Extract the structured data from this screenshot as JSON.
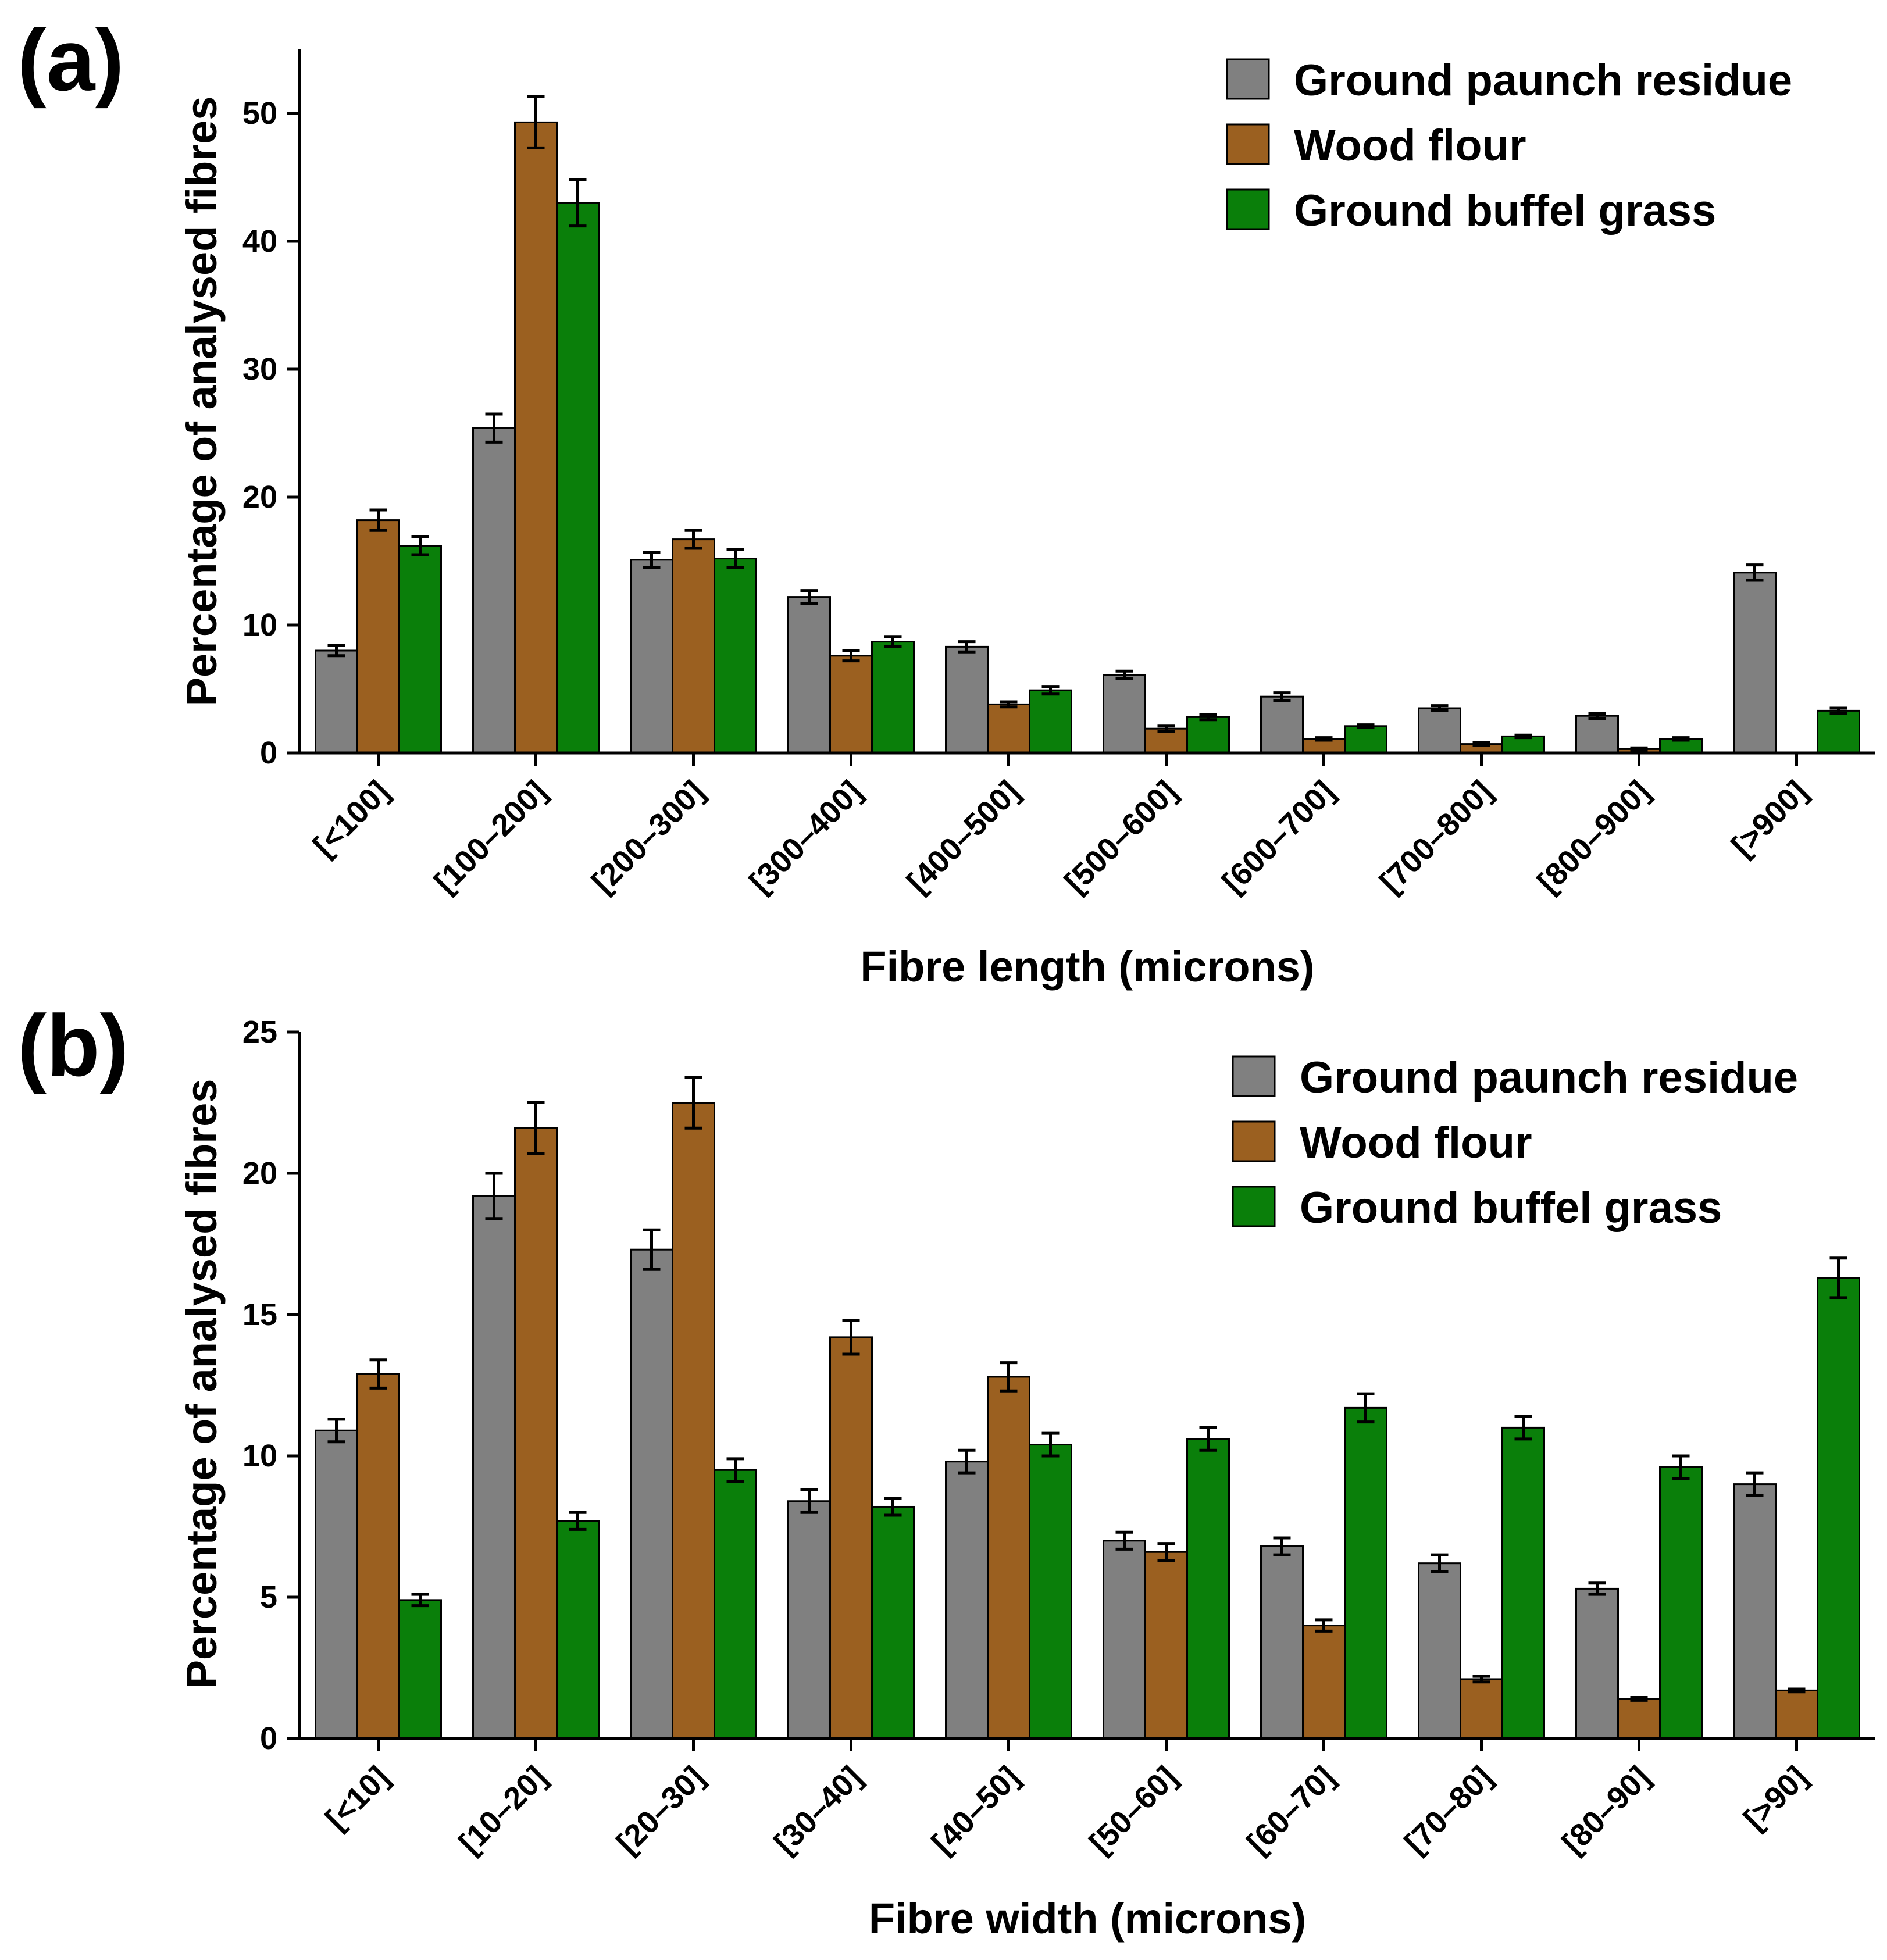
{
  "colors": {
    "Ground paunch residue": "#808080",
    "Wood flour": "#9b6020",
    "Ground buffel grass": "#0a7f0a"
  },
  "chart_data": [
    {
      "panel_label": "(a)",
      "type": "bar",
      "xlabel": "Fibre length (microns)",
      "ylabel": "Percentage of analysed fibres",
      "ylim": [
        0,
        55
      ],
      "yticks": [
        0,
        10,
        20,
        30,
        40,
        50
      ],
      "legend_position": "top-right",
      "categories": [
        "[<100]",
        "[100–200]",
        "[200–300]",
        "[300–400]",
        "[400–500]",
        "[500–600]",
        "[600–700]",
        "[700–800]",
        "[800–900]",
        "[>900]"
      ],
      "series": [
        {
          "name": "Ground paunch residue",
          "values": [
            8.0,
            25.4,
            15.1,
            12.2,
            8.3,
            6.1,
            4.4,
            3.5,
            2.9,
            14.1
          ],
          "errors": [
            0.4,
            1.1,
            0.6,
            0.5,
            0.4,
            0.3,
            0.3,
            0.2,
            0.2,
            0.6
          ]
        },
        {
          "name": "Wood flour",
          "values": [
            18.2,
            49.3,
            16.7,
            7.6,
            3.8,
            1.9,
            1.1,
            0.7,
            0.3,
            0.0
          ],
          "errors": [
            0.8,
            2.0,
            0.7,
            0.4,
            0.2,
            0.2,
            0.1,
            0.1,
            0.1,
            0.0
          ]
        },
        {
          "name": "Ground buffel grass",
          "values": [
            16.2,
            43.0,
            15.2,
            8.7,
            4.9,
            2.8,
            2.1,
            1.3,
            1.1,
            3.3
          ],
          "errors": [
            0.7,
            1.8,
            0.7,
            0.4,
            0.3,
            0.2,
            0.1,
            0.1,
            0.1,
            0.2
          ]
        }
      ]
    },
    {
      "panel_label": "(b)",
      "type": "bar",
      "xlabel": "Fibre width (microns)",
      "ylabel": "Percentage of analysed fibres",
      "ylim": [
        0,
        25
      ],
      "yticks": [
        0,
        5,
        10,
        15,
        20,
        25
      ],
      "legend_position": "top-right",
      "categories": [
        "[<10]",
        "[10–20]",
        "[20–30]",
        "[30–40]",
        "[40–50]",
        "[50–60]",
        "[60–70]",
        "[70–80]",
        "[80–90]",
        "[>90]"
      ],
      "series": [
        {
          "name": "Ground paunch residue",
          "values": [
            10.9,
            19.2,
            17.3,
            8.4,
            9.8,
            7.0,
            6.8,
            6.2,
            5.3,
            9.0
          ],
          "errors": [
            0.4,
            0.8,
            0.7,
            0.4,
            0.4,
            0.3,
            0.3,
            0.3,
            0.2,
            0.4
          ]
        },
        {
          "name": "Wood flour",
          "values": [
            12.9,
            21.6,
            22.5,
            14.2,
            12.8,
            6.6,
            4.0,
            2.1,
            1.4,
            1.7
          ],
          "errors": [
            0.5,
            0.9,
            0.9,
            0.6,
            0.5,
            0.3,
            0.2,
            0.1,
            0.05,
            0.05
          ]
        },
        {
          "name": "Ground buffel grass",
          "values": [
            4.9,
            7.7,
            9.5,
            8.2,
            10.4,
            10.6,
            11.7,
            11.0,
            9.6,
            16.3
          ],
          "errors": [
            0.2,
            0.3,
            0.4,
            0.3,
            0.4,
            0.4,
            0.5,
            0.4,
            0.4,
            0.7
          ]
        }
      ]
    }
  ]
}
